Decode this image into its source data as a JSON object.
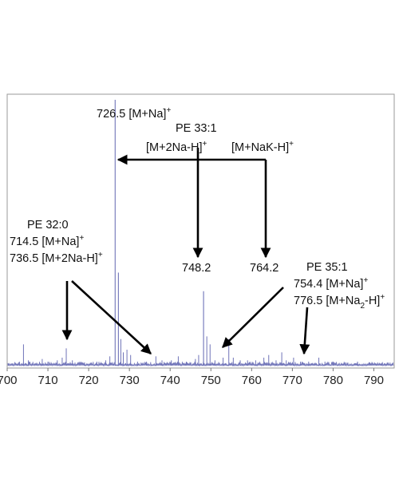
{
  "chart_data": {
    "type": "line",
    "xlim": [
      700,
      795
    ],
    "ylim": [
      0,
      100
    ],
    "x_ticks": [
      700,
      710,
      720,
      730,
      740,
      750,
      760,
      770,
      780,
      790
    ],
    "x_tick_labels": [
      "700",
      "710",
      "720",
      "730",
      "740",
      "750",
      "760",
      "770",
      "780",
      "790"
    ],
    "grid": false,
    "legend": "none",
    "series_color": "#6f73b8",
    "peaks": [
      {
        "x": 703.0,
        "y": 1.5
      },
      {
        "x": 704.0,
        "y": 8.0
      },
      {
        "x": 705.2,
        "y": 2.0
      },
      {
        "x": 708.6,
        "y": 2.5
      },
      {
        "x": 710.0,
        "y": 1.5
      },
      {
        "x": 712.3,
        "y": 2.0
      },
      {
        "x": 713.5,
        "y": 3.0
      },
      {
        "x": 714.5,
        "y": 6.5
      },
      {
        "x": 716.0,
        "y": 2.0
      },
      {
        "x": 719.0,
        "y": 1.2
      },
      {
        "x": 722.0,
        "y": 1.5
      },
      {
        "x": 724.2,
        "y": 2.0
      },
      {
        "x": 725.2,
        "y": 3.5
      },
      {
        "x": 726.5,
        "y": 100
      },
      {
        "x": 727.3,
        "y": 35
      },
      {
        "x": 727.9,
        "y": 10
      },
      {
        "x": 728.5,
        "y": 5.0
      },
      {
        "x": 729.4,
        "y": 6.0
      },
      {
        "x": 730.3,
        "y": 4.0
      },
      {
        "x": 732.0,
        "y": 1.5
      },
      {
        "x": 734.2,
        "y": 1.5
      },
      {
        "x": 736.5,
        "y": 3.5
      },
      {
        "x": 738.0,
        "y": 2.0
      },
      {
        "x": 740.3,
        "y": 2.0
      },
      {
        "x": 742.0,
        "y": 3.5
      },
      {
        "x": 744.0,
        "y": 1.5
      },
      {
        "x": 746.2,
        "y": 2.5
      },
      {
        "x": 747.0,
        "y": 4.0
      },
      {
        "x": 748.2,
        "y": 28
      },
      {
        "x": 749.0,
        "y": 11
      },
      {
        "x": 749.8,
        "y": 8.0
      },
      {
        "x": 751.0,
        "y": 2.0
      },
      {
        "x": 753.0,
        "y": 3.0
      },
      {
        "x": 754.4,
        "y": 10
      },
      {
        "x": 755.5,
        "y": 3.0
      },
      {
        "x": 757.2,
        "y": 2.0
      },
      {
        "x": 759.0,
        "y": 2.0
      },
      {
        "x": 761.0,
        "y": 2.0
      },
      {
        "x": 763.0,
        "y": 3.0
      },
      {
        "x": 764.2,
        "y": 4.0
      },
      {
        "x": 766.0,
        "y": 2.0
      },
      {
        "x": 767.4,
        "y": 5.0
      },
      {
        "x": 768.5,
        "y": 2.0
      },
      {
        "x": 770.3,
        "y": 3.0
      },
      {
        "x": 772.0,
        "y": 1.5
      },
      {
        "x": 774.0,
        "y": 1.5
      },
      {
        "x": 776.5,
        "y": 3.0
      },
      {
        "x": 778.0,
        "y": 1.5
      },
      {
        "x": 780.0,
        "y": 1.5
      },
      {
        "x": 783.0,
        "y": 1.2
      },
      {
        "x": 786.0,
        "y": 1.5
      },
      {
        "x": 789.0,
        "y": 1.2
      },
      {
        "x": 792.0,
        "y": 1.0
      }
    ],
    "annotations": {
      "top_peak": {
        "main": "726.5 [M+Na]",
        "sup": "+"
      },
      "pe33_title": "PE 33:1",
      "pe33_adduct1": {
        "main": "[M+2Na-H]",
        "sup": "+"
      },
      "pe33_adduct2": {
        "main": "[M+NaK-H]",
        "sup": "+"
      },
      "peak_748": "748.2",
      "peak_764": "764.2",
      "pe32_title": "PE 32:0",
      "pe32_line1": {
        "main": "714.5 [M+Na]",
        "sup": "+"
      },
      "pe32_line2": {
        "main": "736.5 [M+2Na-H]",
        "sup": "+"
      },
      "pe35_title": "PE 35:1",
      "pe35_line1": {
        "main": "754.4 [M+Na]",
        "sup": "+"
      },
      "pe35_line2": {
        "main_a": "776.5 [M+Na",
        "sub": "2",
        "main_b": "-H]",
        "sup": "+"
      }
    }
  }
}
